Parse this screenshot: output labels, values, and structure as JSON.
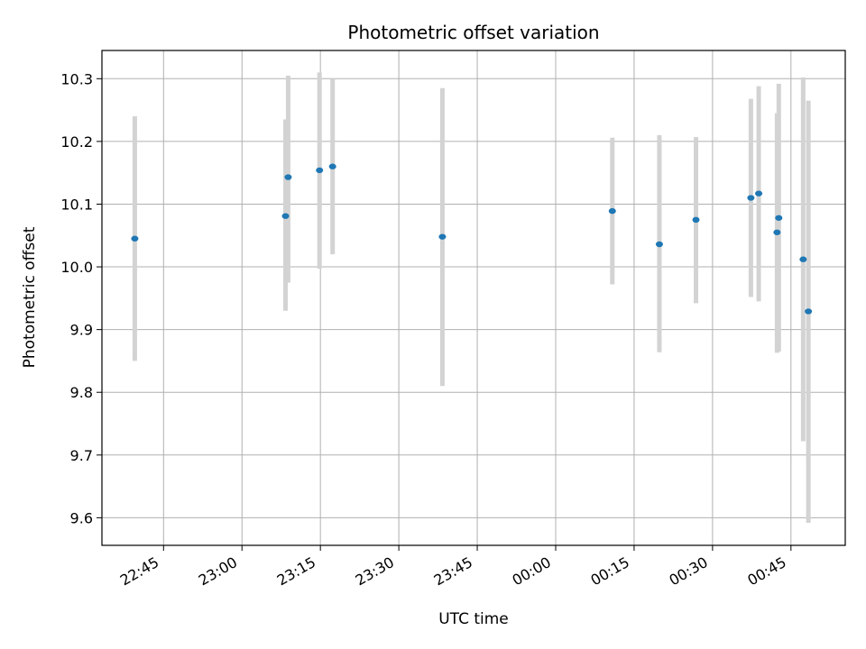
{
  "chart_data": {
    "type": "scatter",
    "title": "Photometric offset variation",
    "xlabel": "UTC time",
    "ylabel": "Photometric offset",
    "grid": true,
    "x_ticks": [
      "22:45",
      "23:00",
      "23:15",
      "23:30",
      "23:45",
      "00:00",
      "00:15",
      "00:30",
      "00:45"
    ],
    "y_ticks": [
      "9.6",
      "9.7",
      "9.8",
      "9.9",
      "10.0",
      "10.1",
      "10.2",
      "10.3"
    ],
    "xlim": [
      "22:33:13",
      "00:55:23"
    ],
    "ylim": [
      9.556,
      10.345
    ],
    "colors": {
      "point": "#1f77b4",
      "errorbar": "#d3d3d3",
      "grid": "#b0b0b0"
    },
    "series": [
      {
        "points": [
          {
            "x": "22:39:30",
            "y": 10.045,
            "yerr_low": 9.85,
            "yerr_high": 10.24
          },
          {
            "x": "23:08:20",
            "y": 10.081,
            "yerr_low": 9.93,
            "yerr_high": 10.235
          },
          {
            "x": "23:08:50",
            "y": 10.143,
            "yerr_low": 9.975,
            "yerr_high": 10.305
          },
          {
            "x": "23:14:50",
            "y": 10.154,
            "yerr_low": 9.997,
            "yerr_high": 10.31
          },
          {
            "x": "23:17:20",
            "y": 10.16,
            "yerr_low": 10.02,
            "yerr_high": 10.3
          },
          {
            "x": "23:38:20",
            "y": 10.048,
            "yerr_low": 9.81,
            "yerr_high": 10.285
          },
          {
            "x": "00:10:50",
            "y": 10.089,
            "yerr_low": 9.972,
            "yerr_high": 10.206
          },
          {
            "x": "00:19:50",
            "y": 10.036,
            "yerr_low": 9.864,
            "yerr_high": 10.21
          },
          {
            "x": "00:26:50",
            "y": 10.075,
            "yerr_low": 9.942,
            "yerr_high": 10.207
          },
          {
            "x": "00:37:20",
            "y": 10.11,
            "yerr_low": 9.952,
            "yerr_high": 10.268
          },
          {
            "x": "00:38:50",
            "y": 10.117,
            "yerr_low": 9.945,
            "yerr_high": 10.288
          },
          {
            "x": "00:42:20",
            "y": 10.055,
            "yerr_low": 9.863,
            "yerr_high": 10.245
          },
          {
            "x": "00:42:40",
            "y": 10.078,
            "yerr_low": 9.865,
            "yerr_high": 10.292
          },
          {
            "x": "00:47:20",
            "y": 10.012,
            "yerr_low": 9.722,
            "yerr_high": 10.302
          },
          {
            "x": "00:48:20",
            "y": 9.929,
            "yerr_low": 9.592,
            "yerr_high": 10.265
          }
        ]
      }
    ]
  }
}
